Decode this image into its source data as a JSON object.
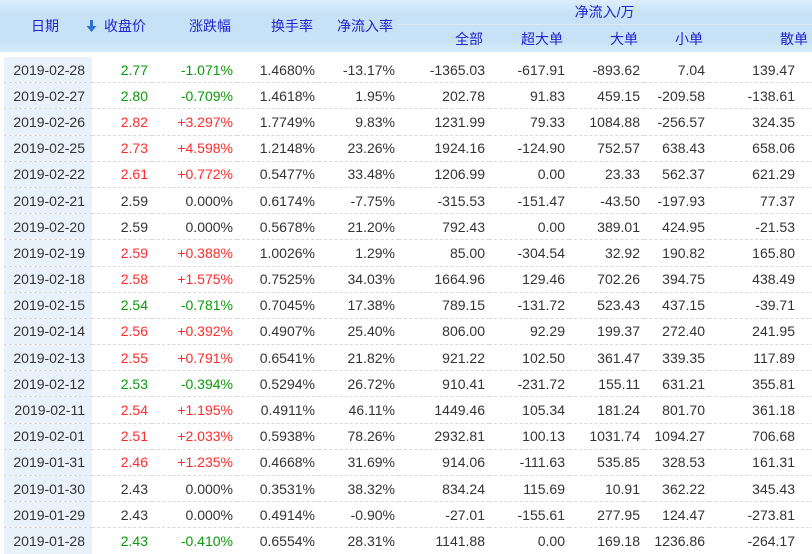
{
  "table": {
    "columns": [
      {
        "key": "date",
        "label": "日期"
      },
      {
        "key": "close",
        "label": "收盘价"
      },
      {
        "key": "change",
        "label": "涨跌幅"
      },
      {
        "key": "turnover",
        "label": "换手率"
      },
      {
        "key": "inflow_rate",
        "label": "净流入率"
      }
    ],
    "group": {
      "label": "净流入/万",
      "children": [
        "全部",
        "超大单",
        "大单",
        "小单",
        "散单"
      ]
    },
    "sort_icon": "arrow-down",
    "rows": [
      {
        "date": "2019-02-28",
        "close": "2.77",
        "change": "-1.071%",
        "trend": "down",
        "turnover": "1.4680%",
        "inflow_rate": "-13.17%",
        "all": "-1365.03",
        "super_large": "-617.91",
        "large": "-893.62",
        "small": "7.04",
        "retail": "139.47"
      },
      {
        "date": "2019-02-27",
        "close": "2.80",
        "change": "-0.709%",
        "trend": "down",
        "turnover": "1.4618%",
        "inflow_rate": "1.95%",
        "all": "202.78",
        "super_large": "91.83",
        "large": "459.15",
        "small": "-209.58",
        "retail": "-138.61"
      },
      {
        "date": "2019-02-26",
        "close": "2.82",
        "change": "+3.297%",
        "trend": "up",
        "turnover": "1.7749%",
        "inflow_rate": "9.83%",
        "all": "1231.99",
        "super_large": "79.33",
        "large": "1084.88",
        "small": "-256.57",
        "retail": "324.35"
      },
      {
        "date": "2019-02-25",
        "close": "2.73",
        "change": "+4.598%",
        "trend": "up",
        "turnover": "1.2148%",
        "inflow_rate": "23.26%",
        "all": "1924.16",
        "super_large": "-124.90",
        "large": "752.57",
        "small": "638.43",
        "retail": "658.06"
      },
      {
        "date": "2019-02-22",
        "close": "2.61",
        "change": "+0.772%",
        "trend": "up",
        "turnover": "0.5477%",
        "inflow_rate": "33.48%",
        "all": "1206.99",
        "super_large": "0.00",
        "large": "23.33",
        "small": "562.37",
        "retail": "621.29"
      },
      {
        "date": "2019-02-21",
        "close": "2.59",
        "change": "0.000%",
        "trend": "flat",
        "turnover": "0.6174%",
        "inflow_rate": "-7.75%",
        "all": "-315.53",
        "super_large": "-151.47",
        "large": "-43.50",
        "small": "-197.93",
        "retail": "77.37"
      },
      {
        "date": "2019-02-20",
        "close": "2.59",
        "change": "0.000%",
        "trend": "flat",
        "turnover": "0.5678%",
        "inflow_rate": "21.20%",
        "all": "792.43",
        "super_large": "0.00",
        "large": "389.01",
        "small": "424.95",
        "retail": "-21.53"
      },
      {
        "date": "2019-02-19",
        "close": "2.59",
        "change": "+0.388%",
        "trend": "up",
        "turnover": "1.0026%",
        "inflow_rate": "1.29%",
        "all": "85.00",
        "super_large": "-304.54",
        "large": "32.92",
        "small": "190.82",
        "retail": "165.80"
      },
      {
        "date": "2019-02-18",
        "close": "2.58",
        "change": "+1.575%",
        "trend": "up",
        "turnover": "0.7525%",
        "inflow_rate": "34.03%",
        "all": "1664.96",
        "super_large": "129.46",
        "large": "702.26",
        "small": "394.75",
        "retail": "438.49"
      },
      {
        "date": "2019-02-15",
        "close": "2.54",
        "change": "-0.781%",
        "trend": "down",
        "turnover": "0.7045%",
        "inflow_rate": "17.38%",
        "all": "789.15",
        "super_large": "-131.72",
        "large": "523.43",
        "small": "437.15",
        "retail": "-39.71"
      },
      {
        "date": "2019-02-14",
        "close": "2.56",
        "change": "+0.392%",
        "trend": "up",
        "turnover": "0.4907%",
        "inflow_rate": "25.40%",
        "all": "806.00",
        "super_large": "92.29",
        "large": "199.37",
        "small": "272.40",
        "retail": "241.95"
      },
      {
        "date": "2019-02-13",
        "close": "2.55",
        "change": "+0.791%",
        "trend": "up",
        "turnover": "0.6541%",
        "inflow_rate": "21.82%",
        "all": "921.22",
        "super_large": "102.50",
        "large": "361.47",
        "small": "339.35",
        "retail": "117.89"
      },
      {
        "date": "2019-02-12",
        "close": "2.53",
        "change": "-0.394%",
        "trend": "down",
        "turnover": "0.5294%",
        "inflow_rate": "26.72%",
        "all": "910.41",
        "super_large": "-231.72",
        "large": "155.11",
        "small": "631.21",
        "retail": "355.81"
      },
      {
        "date": "2019-02-11",
        "close": "2.54",
        "change": "+1.195%",
        "trend": "up",
        "turnover": "0.4911%",
        "inflow_rate": "46.11%",
        "all": "1449.46",
        "super_large": "105.34",
        "large": "181.24",
        "small": "801.70",
        "retail": "361.18"
      },
      {
        "date": "2019-02-01",
        "close": "2.51",
        "change": "+2.033%",
        "trend": "up",
        "turnover": "0.5938%",
        "inflow_rate": "78.26%",
        "all": "2932.81",
        "super_large": "100.13",
        "large": "1031.74",
        "small": "1094.27",
        "retail": "706.68"
      },
      {
        "date": "2019-01-31",
        "close": "2.46",
        "change": "+1.235%",
        "trend": "up",
        "turnover": "0.4668%",
        "inflow_rate": "31.69%",
        "all": "914.06",
        "super_large": "-111.63",
        "large": "535.85",
        "small": "328.53",
        "retail": "161.31"
      },
      {
        "date": "2019-01-30",
        "close": "2.43",
        "change": "0.000%",
        "trend": "flat",
        "turnover": "0.3531%",
        "inflow_rate": "38.32%",
        "all": "834.24",
        "super_large": "115.69",
        "large": "10.91",
        "small": "362.22",
        "retail": "345.43"
      },
      {
        "date": "2019-01-29",
        "close": "2.43",
        "change": "0.000%",
        "trend": "flat",
        "turnover": "0.4914%",
        "inflow_rate": "-0.90%",
        "all": "-27.01",
        "super_large": "-155.61",
        "large": "277.95",
        "small": "124.47",
        "retail": "-273.81"
      },
      {
        "date": "2019-01-28",
        "close": "2.43",
        "change": "-0.410%",
        "trend": "down",
        "turnover": "0.6554%",
        "inflow_rate": "28.31%",
        "all": "1141.88",
        "super_large": "0.00",
        "large": "169.18",
        "small": "1236.86",
        "retail": "-264.17"
      }
    ]
  },
  "colors": {
    "up": "#fe2c2c",
    "down": "#0a9a0a",
    "neutral": "#333333",
    "header_text": "#2024cb",
    "header_bg": "#c7e2f7",
    "date_col_bg": "#e9f2fb",
    "divider": "#d9d9d9",
    "arrow": "#2e6fd0"
  }
}
